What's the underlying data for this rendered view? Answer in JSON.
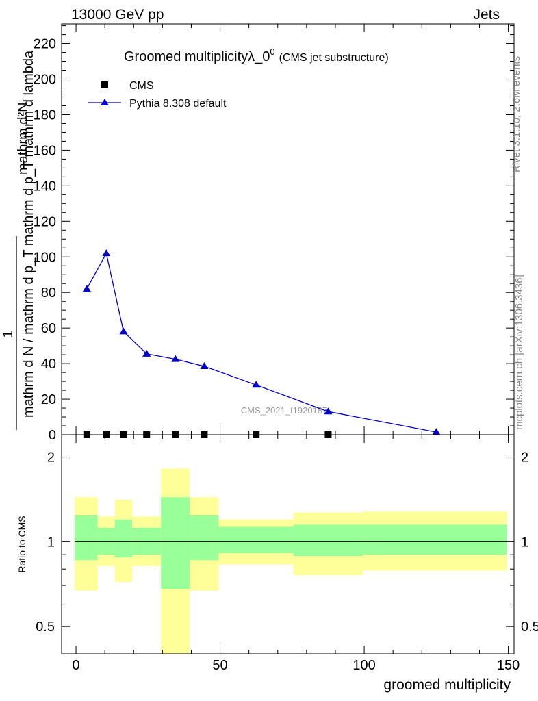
{
  "header": {
    "left": "13000 GeV pp",
    "right": "Jets"
  },
  "side_labels": {
    "rivet": "Rivet 3.1.10,  2.6M events",
    "source": "mcplots.cern.ch [arXiv:1306.3436]"
  },
  "chart_data": [
    {
      "type": "line",
      "title": "Groomed multiplicityλ_0",
      "title_superscript": "0",
      "subtitle": "(CMS jet substructure)",
      "ylabel_numerator": "1",
      "ylabel_denominator": "mathrm d N / mathrm d p_T mathrm d p_T mathrm d lambda",
      "ylabel_main": "mathrm d²N",
      "watermark": "CMS_2021_I1920187",
      "xlim": [
        -5,
        152
      ],
      "ylim": [
        0,
        231
      ],
      "yticks": [
        0,
        20,
        40,
        60,
        80,
        100,
        120,
        140,
        160,
        180,
        200,
        220
      ],
      "legend": {
        "placement": "top-left",
        "entries": [
          "CMS",
          "Pythia 8.308 default"
        ]
      },
      "series": [
        {
          "name": "CMS",
          "marker": "square",
          "color": "#000000",
          "x": [
            3.75,
            10.5,
            16.5,
            24.5,
            34.5,
            44.5,
            62.5,
            87.5
          ],
          "y": [
            0,
            0,
            0,
            0,
            0,
            0,
            0,
            0
          ]
        },
        {
          "name": "Pythia 8.308 default",
          "marker": "triangle",
          "color": "#0000cc",
          "x": [
            3.75,
            10.5,
            16.5,
            24.5,
            34.5,
            44.5,
            62.5,
            87.5,
            125
          ],
          "y": [
            82,
            102,
            58,
            45.5,
            42.5,
            38.5,
            28,
            13,
            1.5
          ]
        }
      ]
    },
    {
      "type": "area",
      "ylabel": "Ratio to CMS",
      "xlabel": "groomed multiplicity",
      "xlim": [
        -5,
        152
      ],
      "ylim": [
        0.4,
        2.4
      ],
      "log_y": true,
      "yticks": [
        0.5,
        1,
        2
      ],
      "xticks": [
        0,
        50,
        100,
        150
      ],
      "reference_line": 1,
      "bands": {
        "inner_color": "#99ff99",
        "outer_color": "#ffff99",
        "bins": [
          {
            "x0": -0.5,
            "x1": 7.5,
            "inner": [
              0.86,
              1.24
            ],
            "outer": [
              0.67,
              1.44
            ]
          },
          {
            "x0": 7.5,
            "x1": 13.5,
            "inner": [
              0.9,
              1.12
            ],
            "outer": [
              0.82,
              1.23
            ]
          },
          {
            "x0": 13.5,
            "x1": 19.5,
            "inner": [
              0.88,
              1.2
            ],
            "outer": [
              0.72,
              1.41
            ]
          },
          {
            "x0": 19.5,
            "x1": 29.5,
            "inner": [
              0.9,
              1.12
            ],
            "outer": [
              0.82,
              1.23
            ]
          },
          {
            "x0": 29.5,
            "x1": 39.5,
            "inner": [
              0.68,
              1.44
            ],
            "outer": [
              0.4,
              1.82
            ]
          },
          {
            "x0": 39.5,
            "x1": 49.5,
            "inner": [
              0.86,
              1.24
            ],
            "outer": [
              0.67,
              1.44
            ]
          },
          {
            "x0": 49.5,
            "x1": 75.5,
            "inner": [
              0.91,
              1.13
            ],
            "outer": [
              0.83,
              1.2
            ]
          },
          {
            "x0": 75.5,
            "x1": 99.5,
            "inner": [
              0.89,
              1.15
            ],
            "outer": [
              0.76,
              1.27
            ]
          },
          {
            "x0": 99.5,
            "x1": 149.5,
            "inner": [
              0.9,
              1.15
            ],
            "outer": [
              0.79,
              1.28
            ]
          }
        ]
      }
    }
  ]
}
